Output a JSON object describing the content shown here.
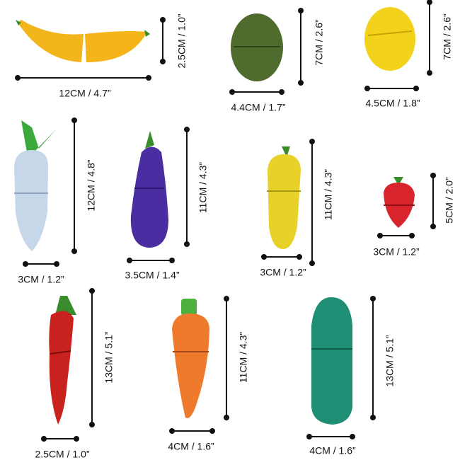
{
  "items": [
    {
      "name": "banana",
      "width": "12CM / 4.7”",
      "height": "2.5CM / 1.0”"
    },
    {
      "name": "olive",
      "width": "4.4CM / 1.7”",
      "height": "7CM / 2.6”"
    },
    {
      "name": "lemon",
      "width": "4.5CM / 1.8”",
      "height": "7CM / 2.6”"
    },
    {
      "name": "radish",
      "width": "3CM / 1.2”",
      "height": "12CM / 4.8”"
    },
    {
      "name": "eggplant",
      "width": "3.5CM / 1.4”",
      "height": "11CM / 4.3”"
    },
    {
      "name": "corn",
      "width": "3CM / 1.2”",
      "height": "11CM / 4.3”"
    },
    {
      "name": "strawberry",
      "width": "3CM / 1.2”",
      "height": "5CM / 2.0”"
    },
    {
      "name": "chili",
      "width": "2.5CM / 1.0”",
      "height": "13CM / 5.1”"
    },
    {
      "name": "carrot",
      "width": "4CM / 1.6”",
      "height": "11CM / 4.3”"
    },
    {
      "name": "cucumber",
      "width": "4CM / 1.6”",
      "height": "13CM / 5.1”"
    }
  ]
}
